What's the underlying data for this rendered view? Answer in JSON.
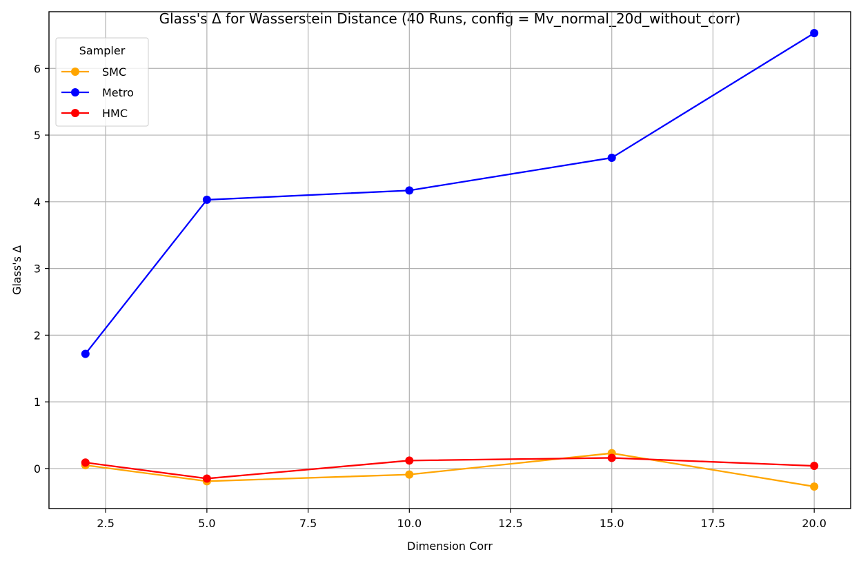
{
  "chart_data": {
    "type": "line",
    "title": "Glass's Δ for Wasserstein Distance (40 Runs, config = Mv_normal_20d_without_corr)",
    "xlabel": "Dimension Corr",
    "ylabel": "Glass's Δ",
    "x": [
      2,
      5,
      10,
      15,
      20
    ],
    "xlim": [
      1.1,
      20.9
    ],
    "ylim": [
      -0.6,
      6.85
    ],
    "xticks": [
      2.5,
      5.0,
      7.5,
      10.0,
      12.5,
      15.0,
      17.5,
      20.0
    ],
    "xtick_labels": [
      "2.5",
      "5.0",
      "7.5",
      "10.0",
      "12.5",
      "15.0",
      "17.5",
      "20.0"
    ],
    "yticks": [
      0,
      1,
      2,
      3,
      4,
      5,
      6
    ],
    "ytick_labels": [
      "0",
      "1",
      "2",
      "3",
      "4",
      "5",
      "6"
    ],
    "grid": true,
    "legend": {
      "title": "Sampler",
      "placement": "upper-left"
    },
    "series": [
      {
        "name": "SMC",
        "color": "#ffa500",
        "values": [
          0.05,
          -0.19,
          -0.09,
          0.23,
          -0.27
        ]
      },
      {
        "name": "Metro",
        "color": "#0000ff",
        "values": [
          1.72,
          4.03,
          4.17,
          4.66,
          6.53
        ]
      },
      {
        "name": "HMC",
        "color": "#ff0000",
        "values": [
          0.09,
          -0.15,
          0.12,
          0.16,
          0.04
        ]
      }
    ]
  }
}
